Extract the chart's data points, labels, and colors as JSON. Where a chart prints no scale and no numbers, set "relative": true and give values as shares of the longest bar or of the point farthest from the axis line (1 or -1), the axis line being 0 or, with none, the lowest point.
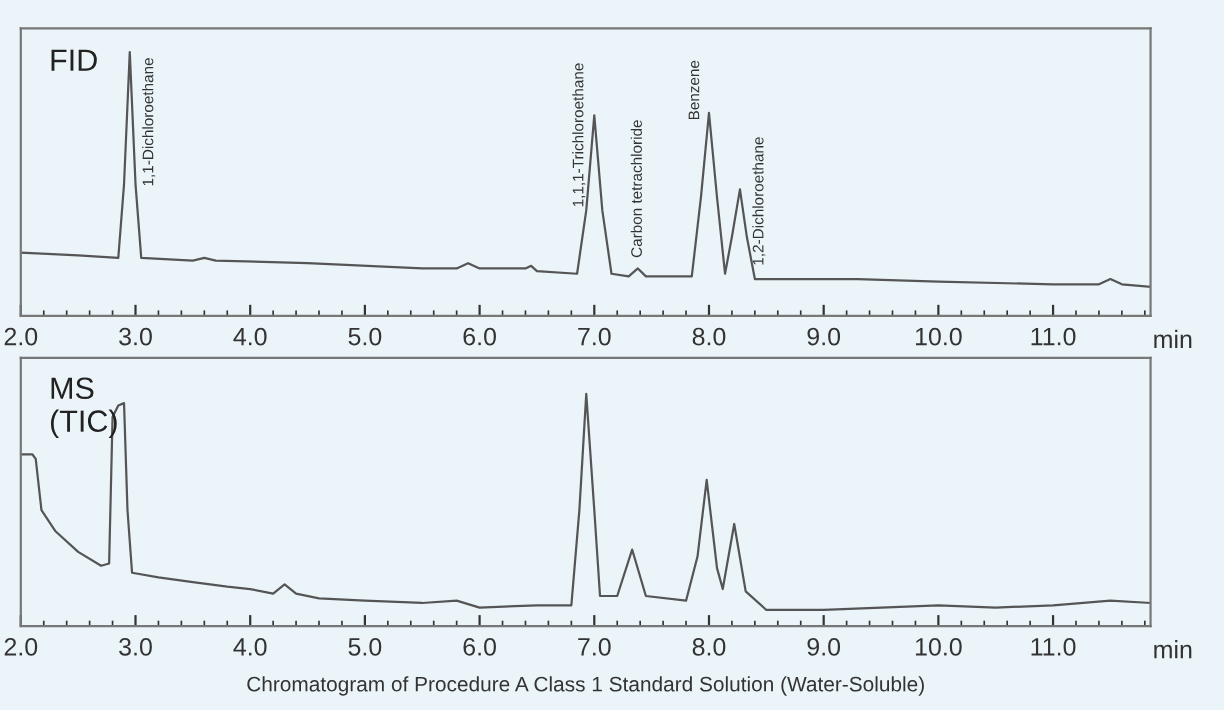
{
  "chart_data": [
    {
      "type": "line",
      "title": "FID",
      "xlabel": "min",
      "relative": true,
      "xlim": [
        2.0,
        11.85
      ],
      "xticks": [
        {
          "value": 2,
          "label": "2.0"
        },
        {
          "value": 3,
          "label": "3.0"
        },
        {
          "value": 4,
          "label": "4.0"
        },
        {
          "value": 5,
          "label": "5.0"
        },
        {
          "value": 6,
          "label": "6.0"
        },
        {
          "value": 7,
          "label": "7.0"
        },
        {
          "value": 8,
          "label": "8.0"
        },
        {
          "value": 9,
          "label": "9.0"
        },
        {
          "value": 10,
          "label": "10.0"
        },
        {
          "value": 11,
          "label": "11.0"
        }
      ],
      "tick_labels": "x",
      "grid": false,
      "legend": false,
      "marker": "none",
      "line_style": "solid",
      "series": [
        {
          "color": "#555555",
          "x": [
            2.0,
            2.5,
            2.85,
            2.9,
            2.95,
            3.0,
            3.05,
            3.5,
            3.6,
            3.7,
            4.5,
            5.5,
            5.8,
            5.9,
            6.0,
            6.4,
            6.45,
            6.5,
            6.85,
            6.93,
            7.0,
            7.07,
            7.15,
            7.3,
            7.38,
            7.45,
            7.85,
            7.93,
            8.0,
            8.07,
            8.14,
            8.2,
            8.27,
            8.33,
            8.4,
            9.0,
            9.3,
            10.0,
            11.0,
            11.4,
            11.5,
            11.6,
            11.85
          ],
          "values": [
            0.24,
            0.23,
            0.22,
            0.5,
            1.0,
            0.5,
            0.22,
            0.21,
            0.22,
            0.21,
            0.2,
            0.18,
            0.18,
            0.2,
            0.18,
            0.18,
            0.19,
            0.17,
            0.16,
            0.4,
            0.76,
            0.4,
            0.16,
            0.15,
            0.18,
            0.15,
            0.15,
            0.45,
            0.77,
            0.45,
            0.16,
            0.3,
            0.48,
            0.3,
            0.14,
            0.14,
            0.14,
            0.13,
            0.12,
            0.12,
            0.14,
            0.12,
            0.11
          ]
        }
      ],
      "annotations": [
        {
          "text": "1,1-Dichloroethane",
          "x": 2.95,
          "y": 1.0
        },
        {
          "text": "1,1,1-Trichloroethane",
          "x": 7.0,
          "y": 0.76
        },
        {
          "text": "Carbon tetrachloride",
          "x": 7.38,
          "y": 0.18
        },
        {
          "text": "Benzene",
          "x": 8.0,
          "y": 0.77
        },
        {
          "text": "1,2-Dichloroethane",
          "x": 8.27,
          "y": 0.48
        }
      ]
    },
    {
      "type": "line",
      "title": "MS\n(TIC)",
      "xlabel": "min",
      "relative": true,
      "xlim": [
        2.0,
        11.85
      ],
      "xticks": [
        {
          "value": 2,
          "label": "2.0"
        },
        {
          "value": 3,
          "label": "3.0"
        },
        {
          "value": 4,
          "label": "4.0"
        },
        {
          "value": 5,
          "label": "5.0"
        },
        {
          "value": 6,
          "label": "6.0"
        },
        {
          "value": 7,
          "label": "7.0"
        },
        {
          "value": 8,
          "label": "8.0"
        },
        {
          "value": 9,
          "label": "9.0"
        },
        {
          "value": 10,
          "label": "10.0"
        },
        {
          "value": 11,
          "label": "11.0"
        }
      ],
      "tick_labels": "x",
      "grid": false,
      "legend": false,
      "marker": "none",
      "line_style": "solid",
      "series": [
        {
          "color": "#555555",
          "x": [
            2.0,
            2.1,
            2.13,
            2.18,
            2.3,
            2.5,
            2.7,
            2.77,
            2.8,
            2.85,
            2.9,
            2.93,
            2.97,
            3.2,
            3.5,
            3.8,
            4.0,
            4.2,
            4.3,
            4.4,
            4.6,
            5.0,
            5.5,
            5.8,
            6.0,
            6.5,
            6.8,
            6.87,
            6.93,
            7.0,
            7.05,
            7.2,
            7.33,
            7.45,
            7.8,
            7.9,
            7.98,
            8.07,
            8.12,
            8.22,
            8.32,
            8.5,
            9.0,
            9.5,
            10.0,
            10.5,
            11.0,
            11.5,
            11.85
          ],
          "values": [
            0.74,
            0.74,
            0.72,
            0.5,
            0.41,
            0.32,
            0.26,
            0.27,
            0.9,
            0.95,
            0.96,
            0.5,
            0.23,
            0.21,
            0.19,
            0.17,
            0.16,
            0.14,
            0.18,
            0.14,
            0.12,
            0.11,
            0.1,
            0.11,
            0.08,
            0.09,
            0.09,
            0.5,
            1.0,
            0.5,
            0.13,
            0.13,
            0.33,
            0.13,
            0.11,
            0.3,
            0.63,
            0.25,
            0.16,
            0.44,
            0.15,
            0.07,
            0.07,
            0.08,
            0.09,
            0.08,
            0.09,
            0.11,
            0.1
          ]
        }
      ],
      "annotations": [
        "Chromatogram of Procedure A Class 1 Standard Solution (Water-Soluble)"
      ]
    }
  ]
}
